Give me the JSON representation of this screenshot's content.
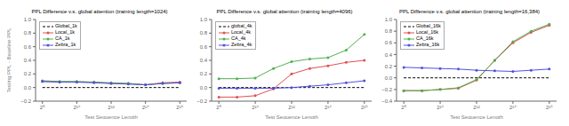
{
  "chart_data": [
    {
      "type": "line",
      "title": "PPL Difference v.s. global attention (training length=1024)",
      "x_label": "Test Sequence Length",
      "y_label": "Testing PPL - Baseline PPL",
      "log": "x",
      "grid": false,
      "legend": "upper left",
      "x": [
        256,
        512,
        1024,
        2048,
        4096,
        8192,
        16384,
        32768,
        65536
      ],
      "xlim": [
        194.0117,
        86475.27
      ],
      "xticks": [
        {
          "value": 256,
          "label": "2⁸"
        },
        {
          "value": 1024,
          "label": "2¹⁰"
        },
        {
          "value": 4096,
          "label": "2¹²"
        },
        {
          "value": 16384,
          "label": "2¹⁴"
        },
        {
          "value": 65536,
          "label": "2¹⁶"
        }
      ],
      "ylim": [
        -0.2,
        1.0
      ],
      "yticks": [
        {
          "value": -0.2,
          "label": "−0.2"
        },
        {
          "value": 0.0,
          "label": "0.0"
        },
        {
          "value": 0.2,
          "label": "0.2"
        },
        {
          "value": 0.4,
          "label": "0.4"
        },
        {
          "value": 0.6,
          "label": "0.6"
        },
        {
          "value": 0.8,
          "label": "0.8"
        },
        {
          "value": 1.0,
          "label": "1.0"
        }
      ],
      "series": [
        {
          "name": "Global_1k",
          "color": "#000000",
          "line_style": "dashed",
          "values": [
            0.0,
            0.0,
            0.0,
            0.0,
            0.0,
            0.0,
            0.0,
            0.0,
            0.0
          ]
        },
        {
          "name": "Local_1k",
          "color": "#e05050",
          "marker": "circle",
          "values": [
            0.09,
            0.08,
            0.08,
            0.08,
            0.06,
            0.06,
            0.04,
            0.07,
            0.08
          ]
        },
        {
          "name": "CA_1k",
          "color": "#50b050",
          "marker": "circle",
          "values": [
            0.1,
            0.09,
            0.09,
            0.08,
            0.07,
            0.06,
            0.04,
            0.06,
            0.07
          ]
        },
        {
          "name": "Zebra_1k",
          "color": "#5050e0",
          "marker": "circle",
          "values": [
            0.09,
            0.08,
            0.08,
            0.07,
            0.06,
            0.05,
            0.04,
            0.06,
            0.07
          ]
        }
      ]
    },
    {
      "type": "line",
      "title": "PPL Difference v.s. global attention (training length=4096)",
      "x_label": "Test Sequence Length",
      "log": "x",
      "grid": false,
      "legend": "upper left",
      "x": [
        256,
        512,
        1024,
        2048,
        4096,
        8192,
        16384,
        32768,
        65536
      ],
      "xlim": [
        194.0117,
        86475.27
      ],
      "xticks": [
        {
          "value": 256,
          "label": "2⁸"
        },
        {
          "value": 1024,
          "label": "2¹⁰"
        },
        {
          "value": 4096,
          "label": "2¹²"
        },
        {
          "value": 16384,
          "label": "2¹⁴"
        },
        {
          "value": 65536,
          "label": "2¹⁶"
        }
      ],
      "ylim": [
        -0.2,
        1.0
      ],
      "yticks": [
        {
          "value": -0.2,
          "label": "−0.2"
        },
        {
          "value": 0.0,
          "label": "0.0"
        },
        {
          "value": 0.2,
          "label": "0.2"
        },
        {
          "value": 0.4,
          "label": "0.4"
        },
        {
          "value": 0.6,
          "label": "0.6"
        },
        {
          "value": 0.8,
          "label": "0.8"
        },
        {
          "value": 1.0,
          "label": "1.0"
        }
      ],
      "series": [
        {
          "name": "global_4k",
          "color": "#000000",
          "line_style": "dashed",
          "values": [
            0.0,
            0.0,
            0.0,
            0.0,
            0.0,
            0.0,
            0.0,
            0.0,
            0.0
          ]
        },
        {
          "name": "Local_4k",
          "color": "#e05050",
          "marker": "circle",
          "values": [
            -0.14,
            -0.14,
            -0.12,
            -0.02,
            0.2,
            0.28,
            0.32,
            0.37,
            0.4
          ]
        },
        {
          "name": "CA_4k",
          "color": "#50b050",
          "marker": "circle",
          "values": [
            0.13,
            0.13,
            0.14,
            0.28,
            0.38,
            0.42,
            0.44,
            0.55,
            0.78
          ]
        },
        {
          "name": "Zebra_4k",
          "color": "#5050e0",
          "marker": "circle",
          "values": [
            -0.01,
            -0.01,
            -0.01,
            -0.01,
            0.0,
            0.02,
            0.04,
            0.07,
            0.1
          ]
        }
      ]
    },
    {
      "type": "line",
      "title": "PPL Difference v.s. global attention (training length=16,384)",
      "x_label": "Test Sequence Length",
      "log": "x",
      "grid": false,
      "legend": "upper left",
      "x": [
        256,
        512,
        1024,
        2048,
        4096,
        8192,
        16384,
        32768,
        65536
      ],
      "xlim": [
        194.0117,
        86475.27
      ],
      "xticks": [
        {
          "value": 256,
          "label": "2⁸"
        },
        {
          "value": 1024,
          "label": "2¹⁰"
        },
        {
          "value": 4096,
          "label": "2¹²"
        },
        {
          "value": 16384,
          "label": "2¹⁴"
        },
        {
          "value": 65536,
          "label": "2¹⁶"
        }
      ],
      "ylim": [
        -0.4,
        1.0
      ],
      "yticks": [
        {
          "value": -0.4,
          "label": "−0.4"
        },
        {
          "value": -0.2,
          "label": "−0.2"
        },
        {
          "value": 0.0,
          "label": "0.0"
        },
        {
          "value": 0.2,
          "label": "0.2"
        },
        {
          "value": 0.4,
          "label": "0.4"
        },
        {
          "value": 0.6,
          "label": "0.6"
        },
        {
          "value": 0.8,
          "label": "0.8"
        },
        {
          "value": 1.0,
          "label": "1.0"
        }
      ],
      "series": [
        {
          "name": "Global_16k",
          "color": "#000000",
          "line_style": "dashed",
          "values": [
            0.0,
            0.0,
            0.0,
            0.0,
            0.0,
            0.0,
            0.0,
            0.0,
            0.0
          ]
        },
        {
          "name": "Local_16k",
          "color": "#e05050",
          "marker": "circle",
          "values": [
            -0.22,
            -0.22,
            -0.2,
            -0.18,
            -0.04,
            0.3,
            0.6,
            0.78,
            0.9
          ]
        },
        {
          "name": "CA_16k",
          "color": "#50b050",
          "marker": "circle",
          "values": [
            -0.22,
            -0.22,
            -0.2,
            -0.17,
            -0.03,
            0.3,
            0.62,
            0.8,
            0.92
          ]
        },
        {
          "name": "Zebra_16k",
          "color": "#5050e0",
          "marker": "circle",
          "values": [
            0.18,
            0.17,
            0.16,
            0.15,
            0.13,
            0.12,
            0.11,
            0.13,
            0.15
          ]
        }
      ]
    }
  ]
}
